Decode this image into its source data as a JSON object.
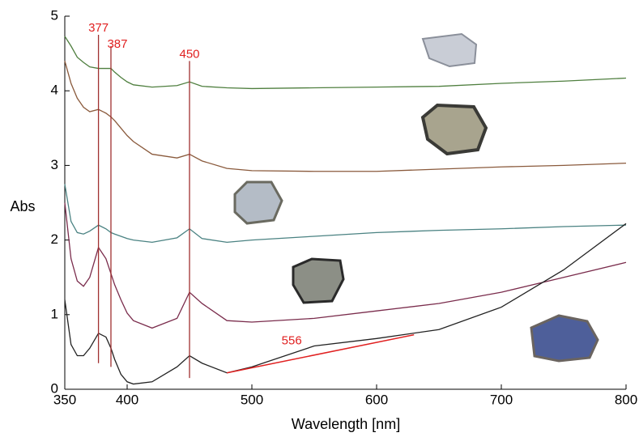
{
  "chart_data": {
    "type": "line",
    "xlabel": "Wavelength [nm]",
    "ylabel": "Abs",
    "x": [
      350,
      355,
      360,
      365,
      370,
      377,
      383,
      387,
      390,
      395,
      400,
      405,
      420,
      440,
      450,
      460,
      480,
      500,
      550,
      600,
      650,
      700,
      750,
      800
    ],
    "series": [
      {
        "color": "#4f7f3f",
        "values": [
          4.73,
          4.6,
          4.45,
          4.38,
          4.32,
          4.3,
          4.3,
          4.3,
          4.25,
          4.18,
          4.12,
          4.08,
          4.05,
          4.07,
          4.12,
          4.06,
          4.04,
          4.03,
          4.04,
          4.05,
          4.06,
          4.1,
          4.13,
          4.17
        ]
      },
      {
        "color": "#8a5a3c",
        "values": [
          4.4,
          4.1,
          3.9,
          3.78,
          3.72,
          3.75,
          3.7,
          3.65,
          3.6,
          3.5,
          3.4,
          3.32,
          3.15,
          3.1,
          3.15,
          3.06,
          2.96,
          2.93,
          2.92,
          2.92,
          2.95,
          2.98,
          3.0,
          3.03
        ]
      },
      {
        "color": "#4a8282",
        "values": [
          2.75,
          2.25,
          2.1,
          2.08,
          2.12,
          2.2,
          2.15,
          2.1,
          2.08,
          2.05,
          2.02,
          2.0,
          1.97,
          2.03,
          2.15,
          2.02,
          1.97,
          2.0,
          2.05,
          2.1,
          2.13,
          2.15,
          2.18,
          2.2
        ]
      },
      {
        "color": "#7a2c4c",
        "values": [
          2.5,
          1.75,
          1.45,
          1.38,
          1.5,
          1.9,
          1.75,
          1.55,
          1.4,
          1.2,
          1.02,
          0.92,
          0.82,
          0.95,
          1.3,
          1.15,
          0.92,
          0.9,
          0.95,
          1.05,
          1.15,
          1.3,
          1.5,
          1.7
        ]
      },
      {
        "color": "#222222",
        "values": [
          1.2,
          0.6,
          0.45,
          0.45,
          0.55,
          0.75,
          0.7,
          0.55,
          0.4,
          0.2,
          0.1,
          0.07,
          0.1,
          0.3,
          0.45,
          0.35,
          0.22,
          0.3,
          0.58,
          0.68,
          0.8,
          1.1,
          1.6,
          2.22
        ]
      }
    ],
    "xlim": [
      350,
      800
    ],
    "xticks": [
      350,
      400,
      500,
      600,
      700,
      800
    ],
    "ylim": [
      0,
      5
    ],
    "yticks": [
      0,
      1,
      2,
      3,
      4,
      5
    ],
    "annotation_color": "#e02020",
    "markers": [
      {
        "label": "377",
        "x": 377,
        "y1": 0.35,
        "y2": 4.75
      },
      {
        "label": "387",
        "x": 387,
        "y1": 0.3,
        "y2": 4.6
      },
      {
        "label": "450",
        "x": 450,
        "y1": 0.15,
        "y2": 4.4
      }
    ],
    "tangent": {
      "label": "556",
      "x1": 480,
      "y1": 0.22,
      "x2": 630,
      "y2": 0.73
    }
  }
}
